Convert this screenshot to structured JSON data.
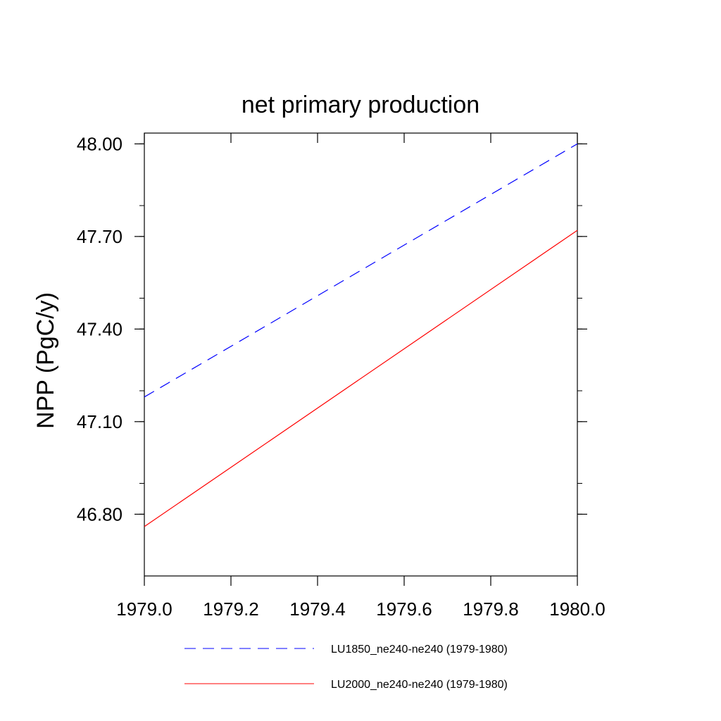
{
  "chart_data": {
    "type": "line",
    "title": "net primary production",
    "xlabel": "",
    "ylabel": "NPP  (PgC/y)",
    "xlim": [
      1979.0,
      1980.0
    ],
    "ylim": [
      46.6,
      48.035
    ],
    "x_ticks": [
      "1979.0",
      "1979.2",
      "1979.4",
      "1979.6",
      "1979.8",
      "1980.0"
    ],
    "y_ticks": [
      "46.80",
      "47.10",
      "47.40",
      "47.70",
      "48.00"
    ],
    "grid": false,
    "legend_position": "bottom",
    "series": [
      {
        "name": "LU1850_ne240-ne240 (1979-1980)",
        "color": "#0000ff",
        "line_style": "dashed",
        "x": [
          1979.0,
          1980.0
        ],
        "y": [
          47.18,
          48.0
        ]
      },
      {
        "name": "LU2000_ne240-ne240 (1979-1980)",
        "color": "#ff0000",
        "line_style": "solid",
        "x": [
          1979.0,
          1980.0
        ],
        "y": [
          46.76,
          47.72
        ]
      }
    ]
  }
}
